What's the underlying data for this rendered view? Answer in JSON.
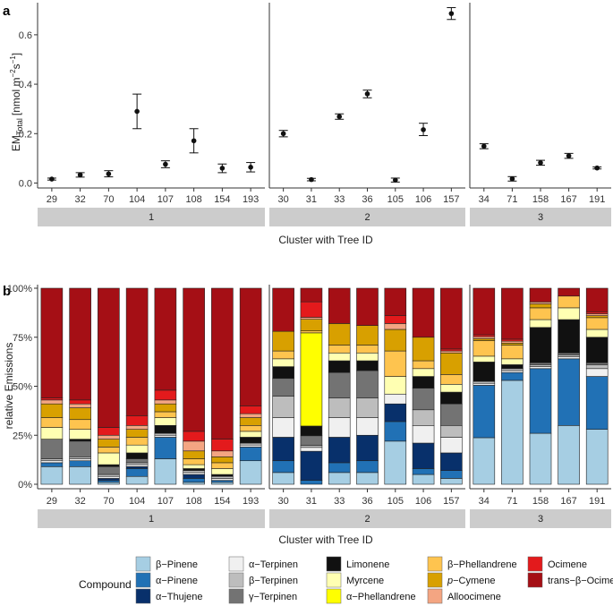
{
  "colors": {
    "b-pinene": "#a6cee3",
    "a-pinene": "#2171b5",
    "a-thujene": "#08306b",
    "a-terpinen": "#f0f0f0",
    "b-terpinen": "#bdbdbd",
    "g-terpinen": "#737373",
    "limonene": "#111111",
    "myrcene": "#ffffb2",
    "a-phellandrene": "#ffff00",
    "b-phellandrene": "#fec44f",
    "p-cymene": "#d8a000",
    "alloocimene": "#f4a582",
    "ocimene": "#e31a1c",
    "trans-b-ocimene": "#a50f15",
    "strip": "#cccccc",
    "point": "#111111"
  },
  "chart_data": [
    {
      "panel_label": "a",
      "type": "scatter",
      "ylabel_main": "EM",
      "ylabel_sub": "Total",
      "ylabel_unit": "[nmol m",
      "ylabel_exp1": "−2",
      "ylabel_s": "s",
      "ylabel_exp2": "−1",
      "ylabel_close": "]",
      "xlabel": "Cluster with Tree ID",
      "ylim": [
        -0.02,
        0.73
      ],
      "yticks": [
        {
          "v": 0.0,
          "label": "0.0"
        },
        {
          "v": 0.2,
          "label": "0.2"
        },
        {
          "v": 0.4,
          "label": "0.4"
        },
        {
          "v": 0.6,
          "label": "0.6"
        }
      ],
      "clusters": [
        {
          "label": "1",
          "points": [
            {
              "tree": "29",
              "y": 0.016,
              "lo": 0.012,
              "hi": 0.02
            },
            {
              "tree": "32",
              "y": 0.033,
              "lo": 0.024,
              "hi": 0.042
            },
            {
              "tree": "70",
              "y": 0.037,
              "lo": 0.025,
              "hi": 0.05
            },
            {
              "tree": "104",
              "y": 0.29,
              "lo": 0.22,
              "hi": 0.36
            },
            {
              "tree": "107",
              "y": 0.076,
              "lo": 0.062,
              "hi": 0.09
            },
            {
              "tree": "108",
              "y": 0.171,
              "lo": 0.122,
              "hi": 0.22
            },
            {
              "tree": "154",
              "y": 0.06,
              "lo": 0.042,
              "hi": 0.077
            },
            {
              "tree": "193",
              "y": 0.064,
              "lo": 0.045,
              "hi": 0.083
            }
          ]
        },
        {
          "label": "2",
          "points": [
            {
              "tree": "30",
              "y": 0.2,
              "lo": 0.187,
              "hi": 0.213
            },
            {
              "tree": "31",
              "y": 0.014,
              "lo": 0.009,
              "hi": 0.019
            },
            {
              "tree": "33",
              "y": 0.269,
              "lo": 0.258,
              "hi": 0.28
            },
            {
              "tree": "36",
              "y": 0.361,
              "lo": 0.345,
              "hi": 0.376
            },
            {
              "tree": "105",
              "y": 0.012,
              "lo": 0.004,
              "hi": 0.02
            },
            {
              "tree": "106",
              "y": 0.216,
              "lo": 0.192,
              "hi": 0.242
            },
            {
              "tree": "157",
              "y": 0.686,
              "lo": 0.662,
              "hi": 0.71
            }
          ]
        },
        {
          "label": "3",
          "points": [
            {
              "tree": "34",
              "y": 0.149,
              "lo": 0.139,
              "hi": 0.159
            },
            {
              "tree": "71",
              "y": 0.017,
              "lo": 0.008,
              "hi": 0.026
            },
            {
              "tree": "158",
              "y": 0.082,
              "lo": 0.072,
              "hi": 0.092
            },
            {
              "tree": "167",
              "y": 0.11,
              "lo": 0.1,
              "hi": 0.12
            },
            {
              "tree": "191",
              "y": 0.061,
              "lo": 0.057,
              "hi": 0.065
            }
          ]
        }
      ]
    },
    {
      "panel_label": "b",
      "type": "bar",
      "stacked": true,
      "ylabel": "relative Emissions",
      "xlabel": "Cluster with Tree ID",
      "yticks": [
        {
          "v": 0,
          "label": "0%"
        },
        {
          "v": 25,
          "label": "25%"
        },
        {
          "v": 50,
          "label": "50%"
        },
        {
          "v": 75,
          "label": "75%"
        },
        {
          "v": 100,
          "label": "100%"
        }
      ],
      "order": [
        "b-pinene",
        "a-pinene",
        "a-thujene",
        "a-terpinen",
        "b-terpinen",
        "g-terpinen",
        "limonene",
        "myrcene",
        "a-phellandrene",
        "b-phellandrene",
        "p-cymene",
        "alloocimene",
        "ocimene",
        "trans-b-ocimene"
      ],
      "clusters": [
        {
          "label": "1",
          "bars": [
            {
              "tree": "29",
              "values": [
                9,
                2,
                0,
                1,
                1,
                10,
                0,
                6,
                0,
                5,
                7,
                2,
                1,
                56
              ]
            },
            {
              "tree": "32",
              "values": [
                9,
                3,
                0,
                1,
                1,
                8,
                1,
                5,
                0,
                5,
                6,
                2,
                2,
                57
              ]
            },
            {
              "tree": "70",
              "values": [
                1,
                1,
                1,
                1,
                1,
                4,
                1,
                6,
                0,
                3,
                4,
                2,
                4,
                71
              ]
            },
            {
              "tree": "104",
              "values": [
                4,
                4,
                1,
                1,
                1,
                2,
                3,
                4,
                0,
                4,
                4,
                2,
                5,
                65
              ]
            },
            {
              "tree": "107",
              "values": [
                13,
                11,
                0,
                1,
                1,
                0,
                4,
                4,
                0,
                3,
                4,
                2,
                5,
                52
              ]
            },
            {
              "tree": "108",
              "values": [
                1,
                2,
                2,
                1,
                1,
                0,
                1,
                2,
                0,
                3,
                4,
                5,
                5,
                73
              ]
            },
            {
              "tree": "154",
              "values": [
                1,
                1,
                0,
                1,
                1,
                0,
                1,
                3,
                0,
                3,
                3,
                3,
                6,
                77
              ]
            },
            {
              "tree": "193",
              "values": [
                12,
                7,
                0,
                1,
                1,
                0,
                3,
                3,
                0,
                3,
                4,
                2,
                4,
                60
              ]
            }
          ]
        },
        {
          "label": "2",
          "bars": [
            {
              "tree": "30",
              "values": [
                6,
                6,
                12,
                10,
                11,
                9,
                6,
                4,
                0,
                4,
                10,
                0,
                0,
                22
              ]
            },
            {
              "tree": "31",
              "values": [
                0,
                2,
                15,
                2,
                1,
                5,
                5,
                0,
                48,
                1,
                6,
                1,
                8,
                7
              ]
            },
            {
              "tree": "33",
              "values": [
                6,
                5,
                13,
                10,
                10,
                13,
                6,
                4,
                0,
                4,
                11,
                0,
                0,
                18
              ]
            },
            {
              "tree": "36",
              "values": [
                6,
                6,
                13,
                9,
                10,
                14,
                5,
                4,
                0,
                4,
                10,
                0,
                0,
                19
              ]
            },
            {
              "tree": "105",
              "values": [
                22,
                10,
                9,
                5,
                0,
                0,
                0,
                9,
                0,
                13,
                11,
                3,
                4,
                14
              ]
            },
            {
              "tree": "106",
              "values": [
                5,
                3,
                13,
                9,
                8,
                11,
                6,
                4,
                0,
                4,
                12,
                0,
                0,
                25
              ]
            },
            {
              "tree": "157",
              "values": [
                3,
                4,
                9,
                8,
                6,
                11,
                6,
                4,
                0,
                5,
                11,
                1,
                1,
                31
              ]
            }
          ]
        },
        {
          "label": "3",
          "bars": [
            {
              "tree": "34",
              "values": [
                24,
                27,
                0,
                1,
                1,
                0,
                10,
                3,
                0,
                8,
                1,
                1,
                1,
                24
              ]
            },
            {
              "tree": "71",
              "values": [
                53,
                4,
                0,
                1,
                1,
                0,
                2,
                3,
                0,
                7,
                1,
                1,
                1,
                26
              ]
            },
            {
              "tree": "158",
              "values": [
                26,
                33,
                0,
                1,
                1,
                1,
                18,
                4,
                0,
                6,
                2,
                1,
                0,
                7
              ]
            },
            {
              "tree": "167",
              "values": [
                30,
                34,
                0,
                1,
                1,
                1,
                17,
                6,
                0,
                6,
                0,
                0,
                0,
                4
              ]
            },
            {
              "tree": "191",
              "values": [
                28,
                27,
                0,
                4,
                2,
                1,
                13,
                4,
                0,
                6,
                1,
                1,
                1,
                12
              ]
            }
          ]
        }
      ]
    }
  ],
  "legend": {
    "title": "Compound",
    "items": [
      {
        "key": "b-pinene",
        "label": "β−Pinene"
      },
      {
        "key": "a-pinene",
        "label": "α−Pinene"
      },
      {
        "key": "a-thujene",
        "label": "α−Thujene"
      },
      {
        "key": "a-terpinen",
        "label": "α−Terpinen"
      },
      {
        "key": "b-terpinen",
        "label": "β−Terpinen"
      },
      {
        "key": "g-terpinen",
        "label": "γ−Terpinen"
      },
      {
        "key": "limonene",
        "label": "Limonene"
      },
      {
        "key": "myrcene",
        "label": "Myrcene"
      },
      {
        "key": "a-phellandrene",
        "label": "α−Phellandrene"
      },
      {
        "key": "b-phellandrene",
        "label": "β−Phellandrene"
      },
      {
        "key": "p-cymene",
        "label": "−Cymene",
        "prefix": "p"
      },
      {
        "key": "alloocimene",
        "label": "Alloocimene"
      },
      {
        "key": "ocimene",
        "label": "Ocimene"
      },
      {
        "key": "trans-b-ocimene",
        "label": "trans−β−Ocimene"
      }
    ]
  }
}
